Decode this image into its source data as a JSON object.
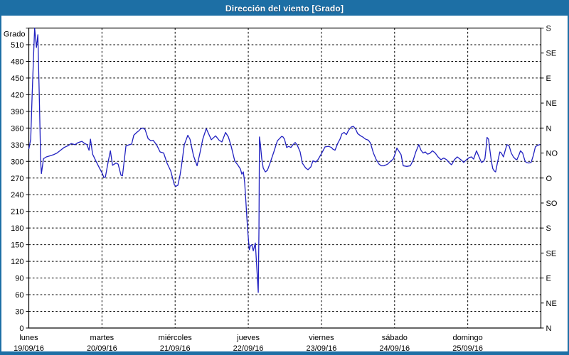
{
  "window": {
    "title": "Dirección del viento [Grado]",
    "title_bg": "#1d6fa5",
    "frame_color": "#1d6fa5"
  },
  "chart_data": {
    "type": "line",
    "title": "Dirección del viento [Grado]",
    "grid": {
      "style": "dashed",
      "h_step": 30,
      "v_step_days": 1,
      "grid_color": "#000000"
    },
    "y_left": {
      "label": "Grado",
      "min": 0,
      "max": 540,
      "tick_step": 30,
      "tick_labels": [
        "0",
        "30",
        "60",
        "90",
        "120",
        "150",
        "180",
        "210",
        "240",
        "270",
        "300",
        "330",
        "360",
        "390",
        "420",
        "450",
        "480",
        "510"
      ]
    },
    "y_right": {
      "tick_step": 45,
      "labels_bottom_to_top": [
        "N",
        "NE",
        "E",
        "SE",
        "S",
        "SO",
        "O",
        "NO",
        "N",
        "NE",
        "E",
        "SE",
        "S"
      ]
    },
    "x_axis": {
      "unit": "days since lunes 19/09/16 00:00",
      "range_days": [
        0,
        7
      ],
      "days": [
        {
          "name": "lunes",
          "date": "19/09/16"
        },
        {
          "name": "martes",
          "date": "20/09/16"
        },
        {
          "name": "miércoles",
          "date": "21/09/16"
        },
        {
          "name": "jueves",
          "date": "22/09/16"
        },
        {
          "name": "viernes",
          "date": "23/09/16"
        },
        {
          "name": "sábado",
          "date": "24/09/16"
        },
        {
          "name": "domingo",
          "date": "25/09/16"
        }
      ]
    },
    "series": [
      {
        "name": "Dirección del viento",
        "unit": "Grado",
        "color": "#2020c0",
        "points": [
          [
            0.002,
            323
          ],
          [
            0.026,
            340
          ],
          [
            0.046,
            420
          ],
          [
            0.065,
            490
          ],
          [
            0.08,
            540
          ],
          [
            0.104,
            505
          ],
          [
            0.123,
            528
          ],
          [
            0.143,
            420
          ],
          [
            0.162,
            300
          ],
          [
            0.172,
            278
          ],
          [
            0.201,
            305
          ],
          [
            0.24,
            308
          ],
          [
            0.289,
            310
          ],
          [
            0.337,
            312
          ],
          [
            0.386,
            315
          ],
          [
            0.434,
            320
          ],
          [
            0.483,
            325
          ],
          [
            0.532,
            328
          ],
          [
            0.58,
            332
          ],
          [
            0.629,
            330
          ],
          [
            0.677,
            334
          ],
          [
            0.726,
            336
          ],
          [
            0.755,
            333
          ],
          [
            0.794,
            330
          ],
          [
            0.823,
            320
          ],
          [
            0.843,
            340
          ],
          [
            0.872,
            313
          ],
          [
            0.92,
            300
          ],
          [
            0.969,
            287
          ],
          [
            0.998,
            280
          ],
          [
            1.027,
            271
          ],
          [
            1.047,
            272
          ],
          [
            1.086,
            300
          ],
          [
            1.115,
            319
          ],
          [
            1.144,
            293
          ],
          [
            1.192,
            297
          ],
          [
            1.221,
            295
          ],
          [
            1.26,
            275
          ],
          [
            1.28,
            274
          ],
          [
            1.328,
            328
          ],
          [
            1.377,
            330
          ],
          [
            1.406,
            331
          ],
          [
            1.435,
            347
          ],
          [
            1.474,
            352
          ],
          [
            1.503,
            355
          ],
          [
            1.533,
            359
          ],
          [
            1.562,
            360
          ],
          [
            1.591,
            357
          ],
          [
            1.63,
            341
          ],
          [
            1.668,
            337
          ],
          [
            1.698,
            338
          ],
          [
            1.746,
            330
          ],
          [
            1.795,
            317
          ],
          [
            1.843,
            315
          ],
          [
            1.892,
            296
          ],
          [
            1.94,
            283
          ],
          [
            1.989,
            258
          ],
          [
            2.009,
            255
          ],
          [
            2.038,
            257
          ],
          [
            2.067,
            275
          ],
          [
            2.087,
            292
          ],
          [
            2.125,
            330
          ],
          [
            2.174,
            347
          ],
          [
            2.203,
            340
          ],
          [
            2.252,
            310
          ],
          [
            2.3,
            292
          ],
          [
            2.339,
            315
          ],
          [
            2.378,
            340
          ],
          [
            2.426,
            359
          ],
          [
            2.495,
            339
          ],
          [
            2.553,
            346
          ],
          [
            2.602,
            338
          ],
          [
            2.64,
            335
          ],
          [
            2.689,
            352
          ],
          [
            2.728,
            344
          ],
          [
            2.767,
            327
          ],
          [
            2.815,
            301
          ],
          [
            2.864,
            292
          ],
          [
            2.893,
            286
          ],
          [
            2.912,
            277
          ],
          [
            2.932,
            281
          ],
          [
            2.951,
            262
          ],
          [
            2.966,
            230
          ],
          [
            2.98,
            200
          ],
          [
            2.995,
            170
          ],
          [
            3.014,
            141
          ],
          [
            3.029,
            148
          ],
          [
            3.048,
            150
          ],
          [
            3.068,
            139
          ],
          [
            3.082,
            146
          ],
          [
            3.097,
            153
          ],
          [
            3.112,
            118
          ],
          [
            3.126,
            88
          ],
          [
            3.136,
            64
          ],
          [
            3.146,
            180
          ],
          [
            3.153,
            344
          ],
          [
            3.165,
            332
          ],
          [
            3.184,
            305
          ],
          [
            3.204,
            288
          ],
          [
            3.233,
            281
          ],
          [
            3.262,
            284
          ],
          [
            3.301,
            298
          ],
          [
            3.349,
            317
          ],
          [
            3.398,
            337
          ],
          [
            3.427,
            341
          ],
          [
            3.456,
            345
          ],
          [
            3.475,
            344
          ],
          [
            3.495,
            340
          ],
          [
            3.524,
            325
          ],
          [
            3.553,
            327
          ],
          [
            3.583,
            325
          ],
          [
            3.612,
            330
          ],
          [
            3.641,
            334
          ],
          [
            3.67,
            329
          ],
          [
            3.709,
            317
          ],
          [
            3.738,
            297
          ],
          [
            3.786,
            288
          ],
          [
            3.816,
            285
          ],
          [
            3.855,
            290
          ],
          [
            3.884,
            301
          ],
          [
            3.923,
            299
          ],
          [
            3.952,
            303
          ],
          [
            4.001,
            314
          ],
          [
            4.049,
            326
          ],
          [
            4.098,
            327
          ],
          [
            4.137,
            325
          ],
          [
            4.156,
            322
          ],
          [
            4.185,
            320
          ],
          [
            4.224,
            333
          ],
          [
            4.253,
            340
          ],
          [
            4.282,
            350
          ],
          [
            4.311,
            352
          ],
          [
            4.341,
            348
          ],
          [
            4.37,
            356
          ],
          [
            4.409,
            362
          ],
          [
            4.438,
            363
          ],
          [
            4.467,
            358
          ],
          [
            4.496,
            350
          ],
          [
            4.535,
            346
          ],
          [
            4.564,
            344
          ],
          [
            4.603,
            340
          ],
          [
            4.642,
            338
          ],
          [
            4.671,
            333
          ],
          [
            4.71,
            315
          ],
          [
            4.749,
            303
          ],
          [
            4.788,
            295
          ],
          [
            4.817,
            292
          ],
          [
            4.856,
            292
          ],
          [
            4.904,
            295
          ],
          [
            4.943,
            300
          ],
          [
            4.982,
            304
          ],
          [
            5.011,
            315
          ],
          [
            5.031,
            324
          ],
          [
            5.06,
            318
          ],
          [
            5.089,
            312
          ],
          [
            5.118,
            292
          ],
          [
            5.167,
            291
          ],
          [
            5.215,
            292
          ],
          [
            5.254,
            302
          ],
          [
            5.293,
            318
          ],
          [
            5.332,
            330
          ],
          [
            5.361,
            320
          ],
          [
            5.39,
            315
          ],
          [
            5.419,
            317
          ],
          [
            5.449,
            313
          ],
          [
            5.478,
            314
          ],
          [
            5.517,
            319
          ],
          [
            5.555,
            315
          ],
          [
            5.594,
            308
          ],
          [
            5.633,
            303
          ],
          [
            5.672,
            306
          ],
          [
            5.711,
            303
          ],
          [
            5.75,
            297
          ],
          [
            5.779,
            294
          ],
          [
            5.818,
            303
          ],
          [
            5.857,
            308
          ],
          [
            5.886,
            305
          ],
          [
            5.915,
            302
          ],
          [
            5.944,
            298
          ],
          [
            5.983,
            303
          ],
          [
            6.022,
            307
          ],
          [
            6.051,
            308
          ],
          [
            6.08,
            304
          ],
          [
            6.119,
            319
          ],
          [
            6.148,
            310
          ],
          [
            6.187,
            298
          ],
          [
            6.216,
            300
          ],
          [
            6.235,
            305
          ],
          [
            6.255,
            330
          ],
          [
            6.264,
            343
          ],
          [
            6.284,
            340
          ],
          [
            6.303,
            320
          ],
          [
            6.323,
            300
          ],
          [
            6.342,
            287
          ],
          [
            6.361,
            283
          ],
          [
            6.381,
            281
          ],
          [
            6.41,
            300
          ],
          [
            6.439,
            317
          ],
          [
            6.459,
            315
          ],
          [
            6.488,
            308
          ],
          [
            6.517,
            322
          ],
          [
            6.536,
            330
          ],
          [
            6.565,
            328
          ],
          [
            6.595,
            315
          ],
          [
            6.624,
            308
          ],
          [
            6.653,
            304
          ],
          [
            6.672,
            303
          ],
          [
            6.702,
            312
          ],
          [
            6.721,
            319
          ],
          [
            6.75,
            315
          ],
          [
            6.779,
            302
          ],
          [
            6.798,
            298
          ],
          [
            6.837,
            297
          ],
          [
            6.866,
            298
          ],
          [
            6.895,
            310
          ],
          [
            6.924,
            326
          ],
          [
            6.954,
            329
          ],
          [
            6.983,
            330
          ]
        ]
      }
    ]
  }
}
